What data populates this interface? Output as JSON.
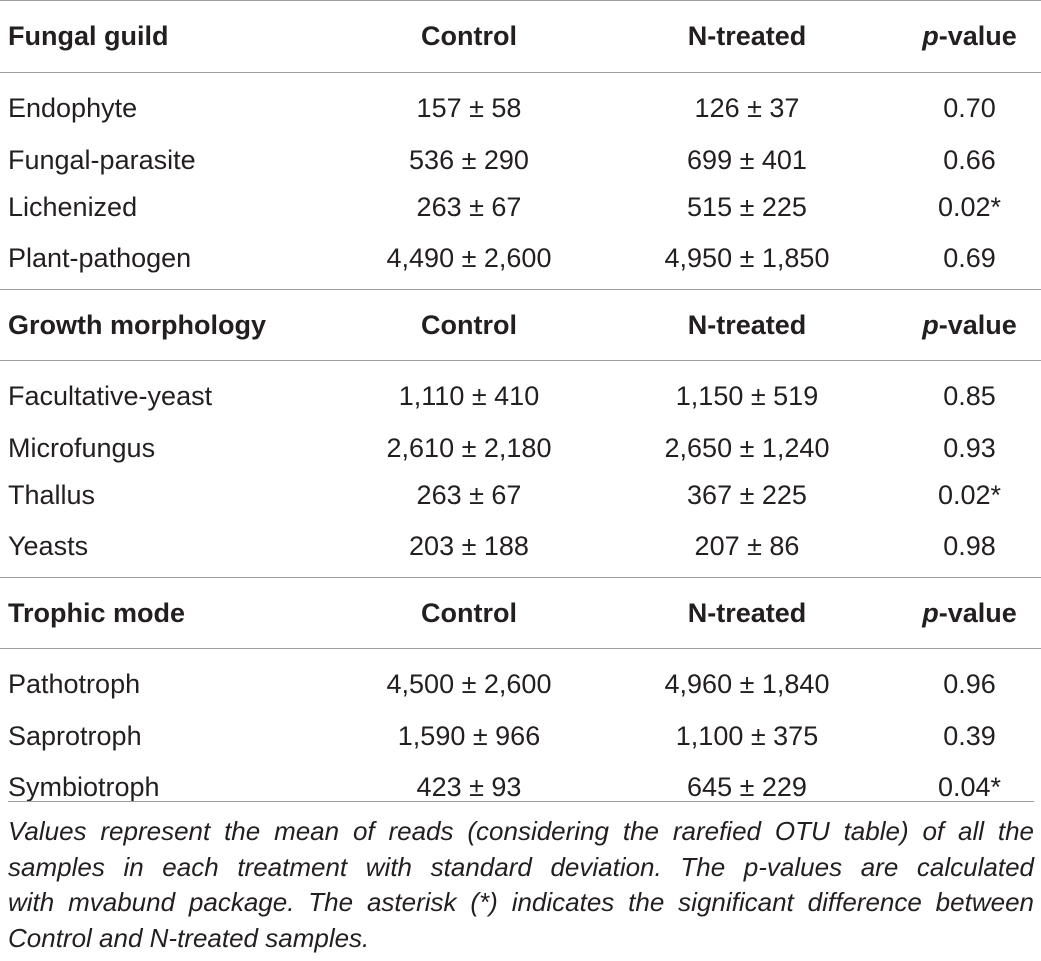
{
  "sections": [
    {
      "header": {
        "name": "Fungal guild",
        "control": "Control",
        "ntreated": "N-treated",
        "pvalue_italic": "p",
        "pvalue_rest": "-value"
      },
      "rows": [
        {
          "name": "Endophyte",
          "control": "157 ± 58",
          "ntreated": "126 ± 37",
          "pvalue": "0.70"
        },
        {
          "name": "Fungal-parasite",
          "control": "536 ± 290",
          "ntreated": "699 ± 401",
          "pvalue": "0.66"
        },
        {
          "name": "Lichenized",
          "control": "263 ± 67",
          "ntreated": "515 ± 225",
          "pvalue": "0.02*"
        },
        {
          "name": "Plant-pathogen",
          "control": "4,490 ± 2,600",
          "ntreated": "4,950 ± 1,850",
          "pvalue": "0.69"
        }
      ]
    },
    {
      "header": {
        "name": "Growth morphology",
        "control": "Control",
        "ntreated": "N-treated",
        "pvalue_italic": "p",
        "pvalue_rest": "-value"
      },
      "rows": [
        {
          "name": "Facultative-yeast",
          "control": "1,110 ± 410",
          "ntreated": "1,150 ± 519",
          "pvalue": "0.85"
        },
        {
          "name": "Microfungus",
          "control": "2,610 ± 2,180",
          "ntreated": "2,650 ± 1,240",
          "pvalue": "0.93"
        },
        {
          "name": "Thallus",
          "control": "263 ± 67",
          "ntreated": "367 ± 225",
          "pvalue": "0.02*"
        },
        {
          "name": "Yeasts",
          "control": "203 ± 188",
          "ntreated": "207 ± 86",
          "pvalue": "0.98"
        }
      ]
    },
    {
      "header": {
        "name": "Trophic mode",
        "control": "Control",
        "ntreated": "N-treated",
        "pvalue_italic": "p",
        "pvalue_rest": "-value"
      },
      "rows": [
        {
          "name": "Pathotroph",
          "control": "4,500 ± 2,600",
          "ntreated": "4,960 ± 1,840",
          "pvalue": "0.96"
        },
        {
          "name": "Saprotroph",
          "control": "1,590 ± 966",
          "ntreated": "1,100 ± 375",
          "pvalue": "0.39"
        },
        {
          "name": "Symbiotroph",
          "control": "423 ± 93",
          "ntreated": "645 ± 229",
          "pvalue": "0.04*"
        }
      ]
    }
  ],
  "caption": {
    "lines": [
      "Values represent the mean of reads (considering the rarefied OTU table) of all the",
      "samples in each treatment with standard deviation. The p-values are calculated",
      "with mvabund package. The asterisk (*) indicates the significant difference between",
      "Control and N-treated samples."
    ]
  }
}
